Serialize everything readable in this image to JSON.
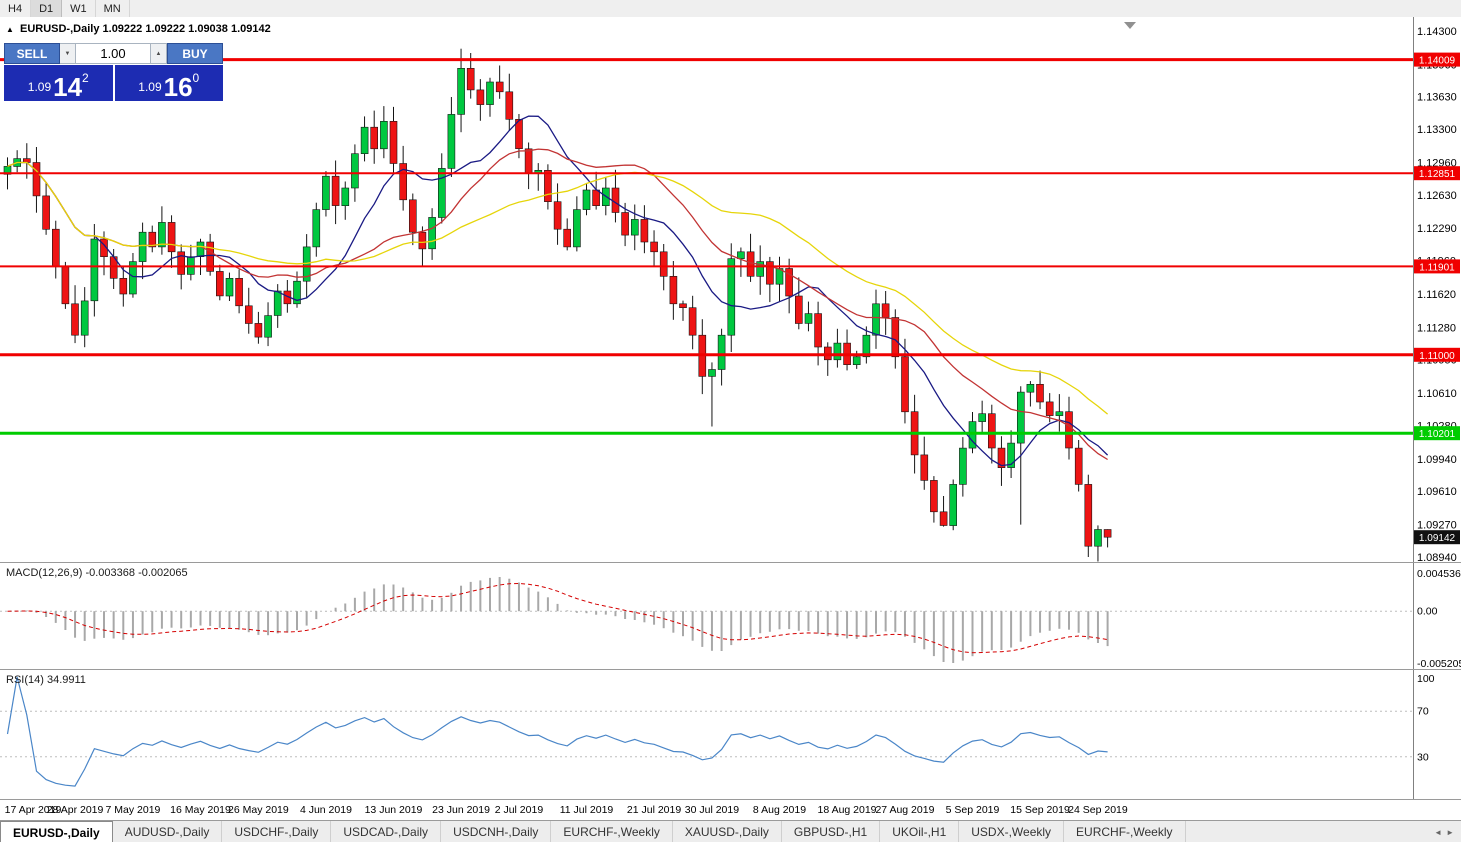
{
  "toolbar": {
    "timeframes": [
      "H4",
      "D1",
      "W1",
      "MN"
    ],
    "active_timeframe": "D1"
  },
  "chart_header": {
    "marker": "▲",
    "symbol": "EURUSD-,Daily",
    "ohlc": "1.09222 1.09222 1.09038 1.09142"
  },
  "trade_panel": {
    "sell_label": "SELL",
    "buy_label": "BUY",
    "volume": "1.00",
    "sell_price": {
      "prefix": "1.09",
      "pips": "14",
      "sup": "2"
    },
    "buy_price": {
      "prefix": "1.09",
      "pips": "16",
      "sup": "0"
    },
    "button_color": "#4a77c4",
    "panel_color": "#1d2cb2"
  },
  "price_axis": {
    "ticks": [
      "1.14300",
      "1.13960",
      "1.13630",
      "1.13300",
      "1.12960",
      "1.12630",
      "1.12290",
      "1.11960",
      "1.11620",
      "1.11280",
      "1.10950",
      "1.10610",
      "1.10280",
      "1.09940",
      "1.09610",
      "1.09270",
      "1.08940"
    ],
    "current_price": {
      "label": "1.09142",
      "value": 1.09142,
      "bg": "#111111",
      "fg": "#ffffff"
    }
  },
  "hlines": [
    {
      "price": 1.14009,
      "label": "1.14009",
      "color": "#f00000",
      "width": 3
    },
    {
      "price": 1.12851,
      "label": "1.12851",
      "color": "#f00000",
      "width": 2
    },
    {
      "price": 1.11901,
      "label": "1.11901",
      "color": "#f00000",
      "width": 2
    },
    {
      "price": 1.11,
      "label": "1.11000",
      "color": "#f00000",
      "width": 3
    },
    {
      "price": 1.10201,
      "label": "1.10201",
      "color": "#00cc00",
      "width": 3
    }
  ],
  "indicators": {
    "macd": {
      "label": "MACD(12,26,9) -0.003368 -0.002065",
      "axis_max": "0.004536",
      "axis_zero": "0.00",
      "axis_min": "-0.005205"
    },
    "rsi": {
      "label": "RSI(14) 34.9911",
      "axis_top": "100",
      "axis_upper": "70",
      "axis_lower": "30"
    }
  },
  "x_axis_labels": [
    {
      "text": "17 Apr 2019",
      "i": 0
    },
    {
      "text": "28 Apr 2019",
      "i": 7
    },
    {
      "text": "7 May 2019",
      "i": 13
    },
    {
      "text": "16 May 2019",
      "i": 20
    },
    {
      "text": "26 May 2019",
      "i": 26
    },
    {
      "text": "4 Jun 2019",
      "i": 33
    },
    {
      "text": "13 Jun 2019",
      "i": 40
    },
    {
      "text": "23 Jun 2019",
      "i": 47
    },
    {
      "text": "2 Jul 2019",
      "i": 53
    },
    {
      "text": "11 Jul 2019",
      "i": 60
    },
    {
      "text": "21 Jul 2019",
      "i": 67
    },
    {
      "text": "30 Jul 2019",
      "i": 73
    },
    {
      "text": "8 Aug 2019",
      "i": 80
    },
    {
      "text": "18 Aug 2019",
      "i": 87
    },
    {
      "text": "27 Aug 2019",
      "i": 93
    },
    {
      "text": "5 Sep 2019",
      "i": 100
    },
    {
      "text": "15 Sep 2019",
      "i": 107
    },
    {
      "text": "24 Sep 2019",
      "i": 113
    }
  ],
  "tabs": [
    {
      "label": "EURUSD-,Daily",
      "active": true
    },
    {
      "label": "AUDUSD-,Daily"
    },
    {
      "label": "USDCHF-,Daily"
    },
    {
      "label": "USDCAD-,Daily"
    },
    {
      "label": "USDCNH-,Daily"
    },
    {
      "label": "EURCHF-,Weekly"
    },
    {
      "label": "XAUUSD-,Daily"
    },
    {
      "label": "GBPUSD-,H1"
    },
    {
      "label": "UKOil-,H1"
    },
    {
      "label": "USDX-,Weekly"
    },
    {
      "label": "EURCHF-,Weekly"
    }
  ],
  "icons": {
    "spinner_down": "▼",
    "spinner_up": "▲",
    "tab_scroll_left": "◄",
    "tab_scroll_right": "►"
  },
  "chart_data": {
    "type": "candlestick",
    "title": "EURUSD-,Daily",
    "symbol": "EURUSD-",
    "timeframe": "Daily",
    "visible_price_range": [
      1.0891,
      1.1446
    ],
    "first_open": 1.1284,
    "closes": [
      1.1292,
      1.13,
      1.1296,
      1.1262,
      1.1228,
      1.119,
      1.1152,
      1.112,
      1.1155,
      1.1218,
      1.12,
      1.1178,
      1.1162,
      1.1195,
      1.1225,
      1.121,
      1.1235,
      1.1205,
      1.1182,
      1.12,
      1.1215,
      1.1185,
      1.116,
      1.1178,
      1.115,
      1.1132,
      1.1118,
      1.114,
      1.1165,
      1.1152,
      1.1175,
      1.121,
      1.1248,
      1.1282,
      1.1252,
      1.127,
      1.1305,
      1.1332,
      1.131,
      1.1338,
      1.1295,
      1.1258,
      1.1225,
      1.1208,
      1.124,
      1.129,
      1.1345,
      1.1392,
      1.137,
      1.1355,
      1.1378,
      1.1368,
      1.134,
      1.131,
      1.1285,
      1.1288,
      1.1256,
      1.1228,
      1.121,
      1.1248,
      1.1268,
      1.1252,
      1.127,
      1.1245,
      1.1222,
      1.1238,
      1.1215,
      1.1205,
      1.118,
      1.1152,
      1.1148,
      1.112,
      1.1078,
      1.1085,
      1.112,
      1.1198,
      1.1205,
      1.118,
      1.1195,
      1.1172,
      1.1188,
      1.116,
      1.1132,
      1.1142,
      1.1108,
      1.1095,
      1.1112,
      1.109,
      1.1098,
      1.112,
      1.1152,
      1.1138,
      1.1098,
      1.1042,
      1.0998,
      1.0972,
      1.094,
      1.0926,
      1.0968,
      1.1005,
      1.1032,
      1.104,
      1.1005,
      1.0985,
      1.101,
      1.1062,
      1.107,
      1.1052,
      1.1038,
      1.1042,
      1.1005,
      1.0968,
      1.0905,
      1.0922,
      1.09142
    ],
    "wick_overrides": {
      "7": {
        "low": 1.1112
      },
      "47": {
        "high": 1.1412
      },
      "72": {
        "low": 1.106
      },
      "73": {
        "low": 1.1027
      },
      "97": {
        "low": 1.0925
      },
      "105": {
        "low": 1.0927,
        "high": 1.1068
      },
      "112": {
        "low": 1.0894
      },
      "114": {
        "high": 1.09222,
        "low": 1.09038
      }
    },
    "up_color": "#00c840",
    "down_color": "#ee1414",
    "candle_border": "#141414",
    "moving_averages": [
      {
        "period": 10,
        "color": "#1a1a84"
      },
      {
        "period": 21,
        "color": "#c23434"
      },
      {
        "period": 34,
        "color": "#e6d50a"
      }
    ],
    "macd": {
      "fast": 12,
      "slow": 26,
      "signal_period": 9,
      "hist_color": "#a8a8a8",
      "signal_color": "#d40000",
      "axis_max": 0.004536,
      "axis_min": -0.005205,
      "current_main": -0.003368,
      "current_signal": -0.002065
    },
    "rsi": {
      "period": 14,
      "color": "#4a86c8",
      "levels": [
        70,
        30
      ],
      "current": 34.9911
    }
  }
}
